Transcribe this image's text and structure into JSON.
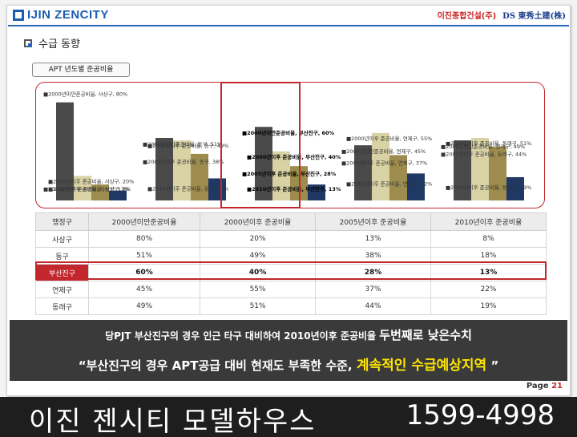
{
  "header": {
    "logo": "IJIN ZENCITY",
    "company_a": "이진종합건설(주)",
    "company_b": "DS 東秀土建(株)"
  },
  "section_title": "수급 동향",
  "chart_tag": "APT 년도별 준공비율",
  "chart_data": {
    "type": "bar",
    "categories": [
      "사상구",
      "동구",
      "부산진구",
      "연제구",
      "동래구"
    ],
    "series": [
      {
        "name": "2000년미만준공비율",
        "values": [
          80,
          51,
          60,
          45,
          49
        ],
        "color": "#4a4a4a"
      },
      {
        "name": "2000년이후 준공비율",
        "values": [
          20,
          49,
          40,
          55,
          51
        ],
        "color": "#d8d2a4"
      },
      {
        "name": "2005년이후 준공비율",
        "values": [
          13,
          38,
          28,
          37,
          44
        ],
        "color": "#9d8c4d"
      },
      {
        "name": "2010년이후 준공비율",
        "values": [
          8,
          18,
          13,
          22,
          19
        ],
        "color": "#1f3864"
      }
    ],
    "labels": [
      [
        "2000년미만준공비율, 사상구, 80%",
        "2000년이후 준공비율, 사상구, 20%",
        "2005년이후 준공비율, 사상구, 13%",
        "2010년이후 준공비율, 사상구, 8%"
      ],
      [
        "2000년미만준공비율, 동구, 51%",
        "2000년이후 준공비율, 동구, 49%",
        "2005년이후 준공비율, 동구, 38%",
        "2010년이후 준공비율, 동구, 18%"
      ],
      [
        "2000년미만준공비율, 부산진구, 60%",
        "2000년이후 준공비율, 부산진구, 40%",
        "2005년이후 준공비율, 부산진구, 28%",
        "2010년이후 준공비율, 부산진구, 13%"
      ],
      [
        "2000년미만준공비율, 연제구, 45%",
        "2000년이후 준공비율, 연제구, 55%",
        "2005년이후 준공비율, 연제구, 37%",
        "2010년이후 준공비율, 연제구, 22%"
      ],
      [
        "2000년미만준공비율, 동래구, 49%",
        "2000년이후 준공비율, 동래구, 51%",
        "2005년이후 준공비율, 동래구, 44%",
        "2010년이후 준공비율, 동래구, 19%"
      ]
    ],
    "highlight_category": "부산진구",
    "ylim": [
      0,
      85
    ],
    "grid": false,
    "legend": "none"
  },
  "table": {
    "headers": [
      "행정구",
      "2000년미만준공비율",
      "2000년이후 준공비율",
      "2005년이후 준공비율",
      "2010년이후 준공비율"
    ],
    "rows": [
      [
        "사상구",
        "80%",
        "20%",
        "13%",
        "8%"
      ],
      [
        "동구",
        "51%",
        "49%",
        "38%",
        "18%"
      ],
      [
        "부산진구",
        "60%",
        "40%",
        "28%",
        "13%"
      ],
      [
        "연제구",
        "45%",
        "55%",
        "37%",
        "22%"
      ],
      [
        "동래구",
        "49%",
        "51%",
        "44%",
        "19%"
      ]
    ]
  },
  "banner": {
    "line1_a": "당PJT 부산진구의 경우 인근 타구 대비하여 2010년이후 준공비율",
    "line1_b": "두번째로 낮은수치",
    "line2_a": "“부산진구의 경우  APT공급 대비  현재도 부족한 수준,",
    "line2_b": "계속적인 수급예상지역",
    "line2_c": "”"
  },
  "page": {
    "label": "Page",
    "number": "21"
  },
  "footer": {
    "name": "이진 젠시티 모델하우스",
    "phone": "1599-4998"
  }
}
